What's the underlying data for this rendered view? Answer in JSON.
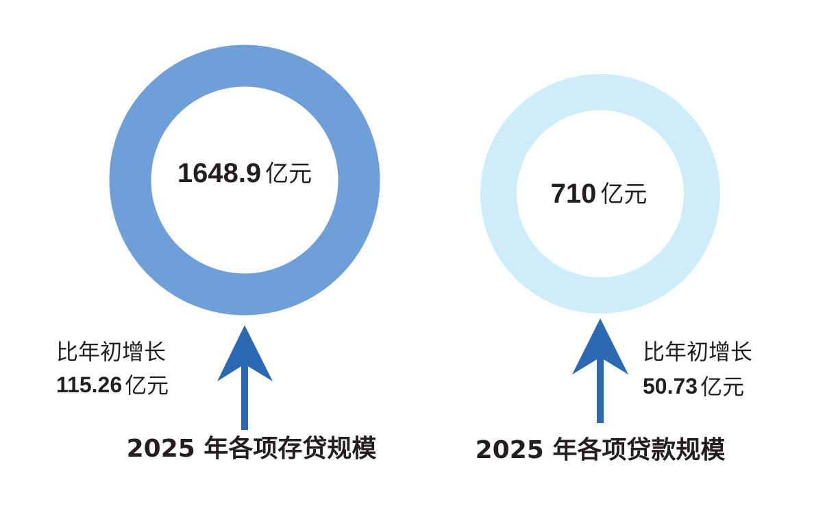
{
  "panels": [
    {
      "value": 1648.9,
      "unit": "亿元",
      "growth_label": "比年初增长",
      "growth": 115.26,
      "growth_unit": "亿元",
      "caption": "2025 年各项存贷规模"
    },
    {
      "value": 710,
      "unit": "亿元",
      "growth_label": "比年初增长",
      "growth": 50.73,
      "growth_unit": "亿元",
      "caption": "2025 年各项贷款规模"
    }
  ]
}
